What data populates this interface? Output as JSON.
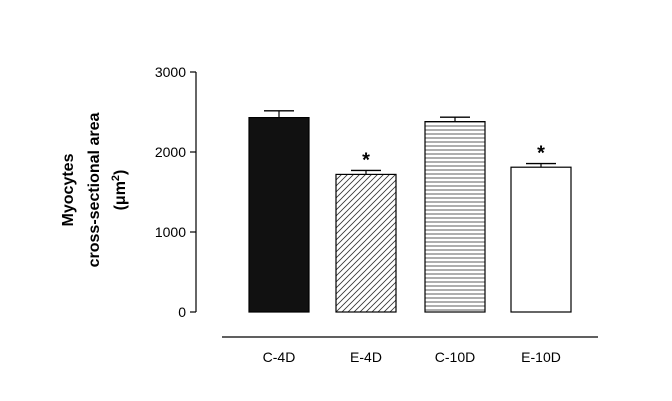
{
  "chart_data": {
    "type": "bar",
    "title": "",
    "xlabel": "",
    "ylabel_lines": [
      "Myocytes",
      "cross-sectional area"
    ],
    "ylabel_unit_base": "(μm",
    "ylabel_unit_sup": "2",
    "ylabel_unit_close": ")",
    "ylim": [
      0,
      3000
    ],
    "yticks": [
      0,
      1000,
      2000,
      3000
    ],
    "categories": [
      "C-4D",
      "E-4D",
      "C-10D",
      "E-10D"
    ],
    "values": [
      2430,
      1720,
      2380,
      1810
    ],
    "errors": [
      85,
      50,
      55,
      45
    ],
    "patterns": [
      "solid-black",
      "diagonal-hatch",
      "horizontal-lines",
      "white"
    ],
    "significance": [
      "",
      "*",
      "",
      "*"
    ],
    "grid": false,
    "legend": "none"
  }
}
